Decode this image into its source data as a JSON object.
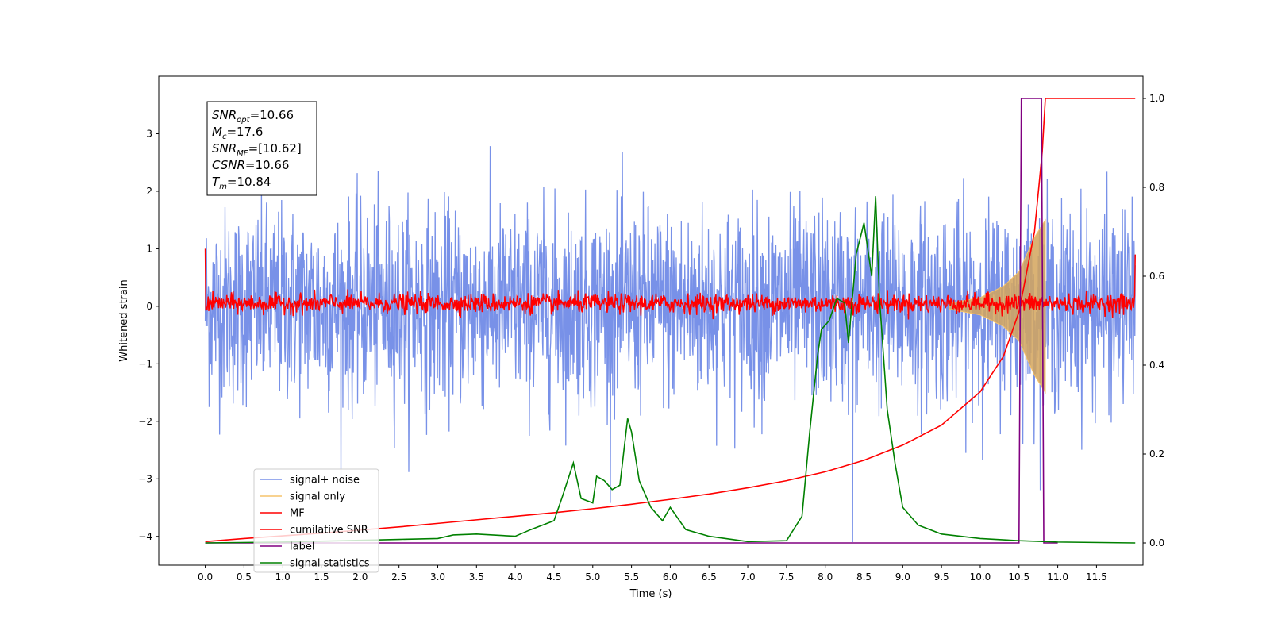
{
  "chart_data": {
    "type": "line",
    "xlabel": "Time (s)",
    "ylabel": "Whitened strain",
    "xlim": [
      -0.6,
      12.1
    ],
    "ylim_left": [
      -4.5,
      4.0
    ],
    "ylim_right": [
      -0.05,
      1.05
    ],
    "x_ticks": [
      "0.0",
      "0.5",
      "1.0",
      "1.5",
      "2.0",
      "2.5",
      "3.0",
      "3.5",
      "4.0",
      "4.5",
      "5.0",
      "5.5",
      "6.0",
      "6.5",
      "7.0",
      "7.5",
      "8.0",
      "8.5",
      "9.0",
      "9.5",
      "10.0",
      "10.5",
      "11.0",
      "11.5"
    ],
    "y_ticks_left": [
      "−4",
      "−3",
      "−2",
      "−1",
      "0",
      "1",
      "2",
      "3"
    ],
    "y_ticks_right": [
      "0.0",
      "0.2",
      "0.4",
      "0.6",
      "0.8",
      "1.0"
    ],
    "grid": false,
    "legend_position": "lower-left",
    "annotation": {
      "lines": [
        {
          "base": "SNR",
          "sub": "opt",
          "rest": "=10.66"
        },
        {
          "base": "M",
          "sub": "c",
          "rest": "=17.6"
        },
        {
          "base": "SNR",
          "sub": "MF",
          "rest": "=[10.62]"
        },
        {
          "base": "CSNR",
          "sub": "",
          "rest": "=10.66"
        },
        {
          "base": "T",
          "sub": "m",
          "rest": "=10.84"
        }
      ]
    },
    "series": [
      {
        "name": "signal+ noise",
        "axis": "left",
        "color": "#7891e8",
        "description_values": "whitened noise, |amplitude| up to about 3.6 over 0.0–12.0 s",
        "x_range": [
          0.0,
          12.0
        ],
        "amplitude_peak": 3.6
      },
      {
        "name": "signal only",
        "axis": "left",
        "color": "#f5c36b",
        "x_range": [
          9.6,
          10.84
        ],
        "envelope": [
          [
            9.6,
            0.05
          ],
          [
            10.0,
            0.15
          ],
          [
            10.3,
            0.35
          ],
          [
            10.5,
            0.6
          ],
          [
            10.7,
            1.2
          ],
          [
            10.84,
            1.5
          ]
        ]
      },
      {
        "name": "MF",
        "axis": "left",
        "color": "#ff0000",
        "x_range": [
          0.0,
          12.0
        ],
        "start_value": 1.0,
        "baseline": 0.05,
        "amplitude": 0.15,
        "end_value": 0.9
      },
      {
        "name": "cumilative SNR",
        "axis": "right",
        "color": "#ff0000",
        "x": [
          0.0,
          0.5,
          1.0,
          1.5,
          2.0,
          2.5,
          3.0,
          3.5,
          4.0,
          4.5,
          5.0,
          5.5,
          6.0,
          6.5,
          7.0,
          7.5,
          8.0,
          8.5,
          9.0,
          9.5,
          10.0,
          10.3,
          10.5,
          10.7,
          10.8,
          10.84,
          12.0
        ],
        "y": [
          0.003,
          0.01,
          0.016,
          0.022,
          0.029,
          0.036,
          0.044,
          0.052,
          0.06,
          0.068,
          0.077,
          0.087,
          0.098,
          0.11,
          0.124,
          0.14,
          0.16,
          0.186,
          0.22,
          0.265,
          0.34,
          0.42,
          0.52,
          0.7,
          0.88,
          1.0,
          1.0
        ]
      },
      {
        "name": "label",
        "axis": "right",
        "color": "#800080",
        "x": [
          0.0,
          10.5,
          10.53,
          10.79,
          10.82,
          11.0
        ],
        "y": [
          0.0,
          0.0,
          1.0,
          1.0,
          0.0,
          0.0
        ]
      },
      {
        "name": "signal statistics",
        "axis": "right",
        "color": "#008000",
        "x": [
          0.0,
          1.0,
          2.0,
          2.5,
          3.0,
          3.2,
          3.5,
          4.0,
          4.2,
          4.35,
          4.5,
          4.6,
          4.75,
          4.85,
          5.0,
          5.05,
          5.15,
          5.25,
          5.35,
          5.45,
          5.5,
          5.6,
          5.75,
          5.9,
          6.0,
          6.2,
          6.5,
          7.0,
          7.5,
          7.7,
          7.8,
          7.9,
          7.95,
          8.05,
          8.15,
          8.25,
          8.3,
          8.4,
          8.5,
          8.6,
          8.65,
          8.7,
          8.8,
          8.9,
          9.0,
          9.2,
          9.5,
          10.0,
          10.5,
          11.0,
          12.0
        ],
        "y": [
          0.0,
          0.002,
          0.006,
          0.008,
          0.01,
          0.018,
          0.02,
          0.015,
          0.03,
          0.04,
          0.05,
          0.1,
          0.18,
          0.1,
          0.09,
          0.15,
          0.14,
          0.12,
          0.13,
          0.28,
          0.25,
          0.14,
          0.08,
          0.05,
          0.08,
          0.03,
          0.015,
          0.003,
          0.005,
          0.06,
          0.25,
          0.42,
          0.48,
          0.5,
          0.55,
          0.54,
          0.45,
          0.65,
          0.72,
          0.6,
          0.78,
          0.55,
          0.3,
          0.18,
          0.08,
          0.04,
          0.02,
          0.01,
          0.005,
          0.002,
          0.0
        ]
      }
    ]
  }
}
